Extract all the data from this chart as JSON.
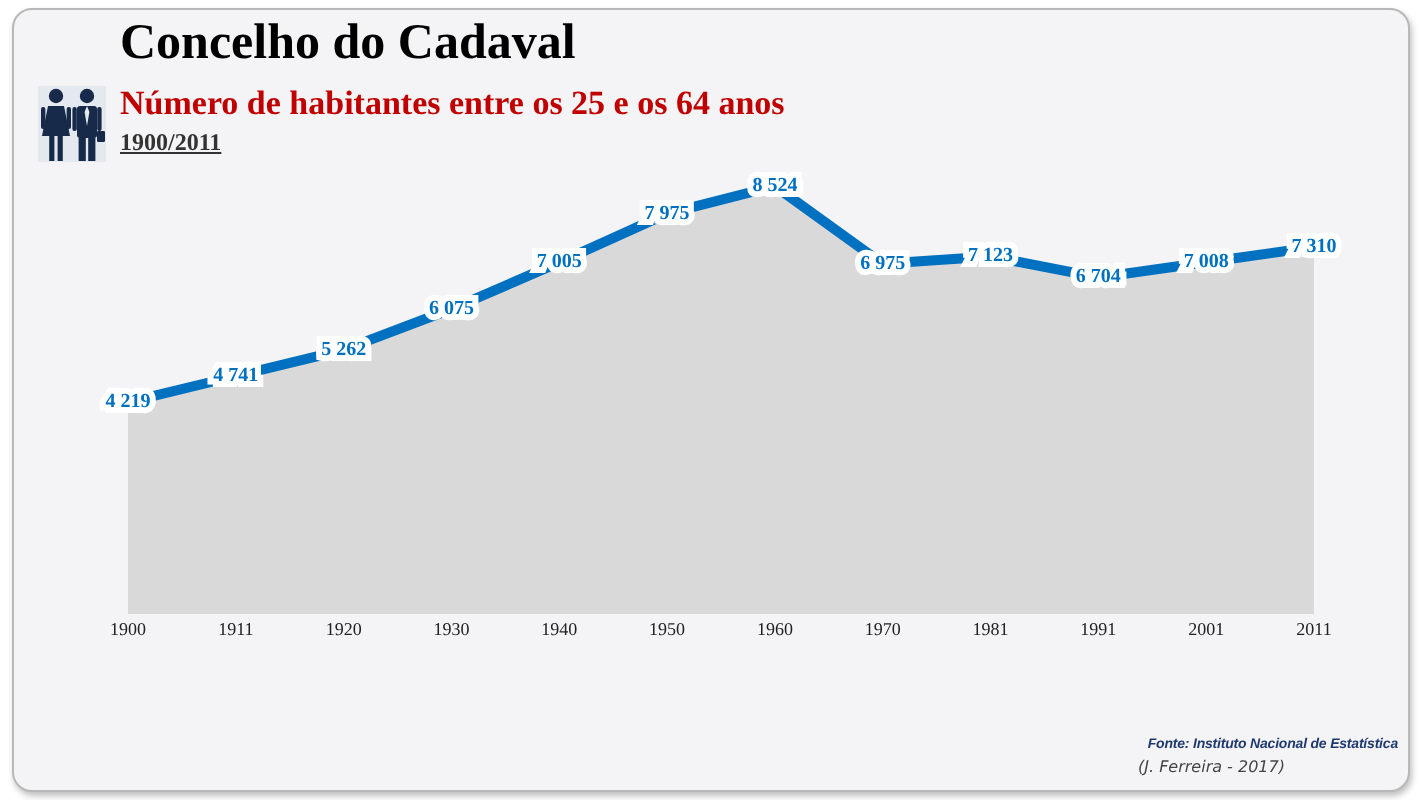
{
  "chart_data": {
    "type": "area",
    "title": "Concelho do Cadaval",
    "subtitle": "Número de habitantes entre os 25 e os 64 anos",
    "annotations": [
      "1900/2011",
      "Fonte: Instituto Nacional de Estatística",
      "(J. Ferreira - 2017)"
    ],
    "categories": [
      "1900",
      "1911",
      "1920",
      "1930",
      "1940",
      "1950",
      "1960",
      "1970",
      "1981",
      "1991",
      "2001",
      "2011"
    ],
    "color": "#0070c0",
    "values": [
      4219,
      4741,
      5262,
      6075,
      7005,
      7975,
      8524,
      6975,
      7123,
      6704,
      7008,
      7310
    ],
    "value_labels": [
      "4 219",
      "4 741",
      "5 262",
      "6 075",
      "7 005",
      "7 975",
      "8 524",
      "6 975",
      "7 123",
      "6 704",
      "7 008",
      "7 310"
    ],
    "marker": "none",
    "line_style": "solid",
    "tick_labels": "x"
  }
}
